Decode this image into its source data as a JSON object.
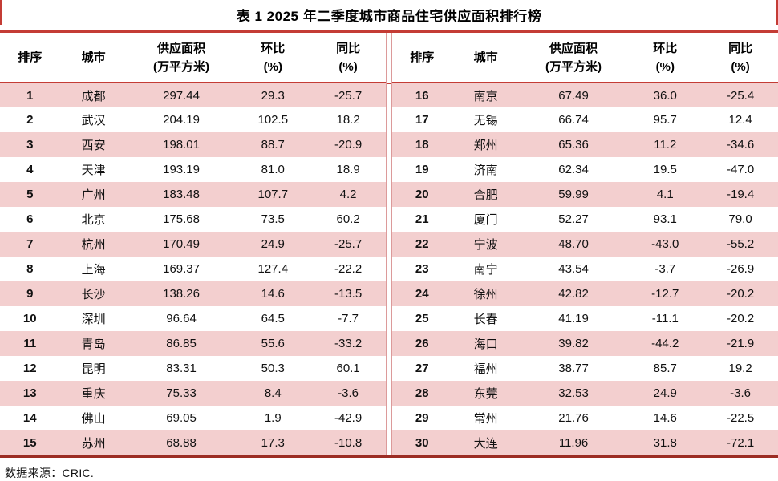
{
  "title": "表 1  2025 年二季度城市商品住宅供应面积排行榜",
  "footer": "数据来源：CRIC.",
  "columns": [
    {
      "line1": "排序",
      "line2": ""
    },
    {
      "line1": "城市",
      "line2": ""
    },
    {
      "line1": "供应面积",
      "line2": "(万平方米)"
    },
    {
      "line1": "环比",
      "line2": "(%)"
    },
    {
      "line1": "同比",
      "line2": "(%)"
    }
  ],
  "rows_left": [
    [
      "1",
      "成都",
      "297.44",
      "29.3",
      "-25.7"
    ],
    [
      "2",
      "武汉",
      "204.19",
      "102.5",
      "18.2"
    ],
    [
      "3",
      "西安",
      "198.01",
      "88.7",
      "-20.9"
    ],
    [
      "4",
      "天津",
      "193.19",
      "81.0",
      "18.9"
    ],
    [
      "5",
      "广州",
      "183.48",
      "107.7",
      "4.2"
    ],
    [
      "6",
      "北京",
      "175.68",
      "73.5",
      "60.2"
    ],
    [
      "7",
      "杭州",
      "170.49",
      "24.9",
      "-25.7"
    ],
    [
      "8",
      "上海",
      "169.37",
      "127.4",
      "-22.2"
    ],
    [
      "9",
      "长沙",
      "138.26",
      "14.6",
      "-13.5"
    ],
    [
      "10",
      "深圳",
      "96.64",
      "64.5",
      "-7.7"
    ],
    [
      "11",
      "青岛",
      "86.85",
      "55.6",
      "-33.2"
    ],
    [
      "12",
      "昆明",
      "83.31",
      "50.3",
      "60.1"
    ],
    [
      "13",
      "重庆",
      "75.33",
      "8.4",
      "-3.6"
    ],
    [
      "14",
      "佛山",
      "69.05",
      "1.9",
      "-42.9"
    ],
    [
      "15",
      "苏州",
      "68.88",
      "17.3",
      "-10.8"
    ]
  ],
  "rows_right": [
    [
      "16",
      "南京",
      "67.49",
      "36.0",
      "-25.4"
    ],
    [
      "17",
      "无锡",
      "66.74",
      "95.7",
      "12.4"
    ],
    [
      "18",
      "郑州",
      "65.36",
      "11.2",
      "-34.6"
    ],
    [
      "19",
      "济南",
      "62.34",
      "19.5",
      "-47.0"
    ],
    [
      "20",
      "合肥",
      "59.99",
      "4.1",
      "-19.4"
    ],
    [
      "21",
      "厦门",
      "52.27",
      "93.1",
      "79.0"
    ],
    [
      "22",
      "宁波",
      "48.70",
      "-43.0",
      "-55.2"
    ],
    [
      "23",
      "南宁",
      "43.54",
      "-3.7",
      "-26.9"
    ],
    [
      "24",
      "徐州",
      "42.82",
      "-12.7",
      "-20.2"
    ],
    [
      "25",
      "长春",
      "41.19",
      "-11.1",
      "-20.2"
    ],
    [
      "26",
      "海口",
      "39.82",
      "-44.2",
      "-21.9"
    ],
    [
      "27",
      "福州",
      "38.77",
      "85.7",
      "19.2"
    ],
    [
      "28",
      "东莞",
      "32.53",
      "24.9",
      "-3.6"
    ],
    [
      "29",
      "常州",
      "21.76",
      "14.6",
      "-22.5"
    ],
    [
      "30",
      "大连",
      "11.96",
      "31.8",
      "-72.1"
    ]
  ],
  "colors": {
    "accent_red": "#c43c35",
    "dark_red": "#9c2d24",
    "stripe_pink": "#f3cfcf",
    "divider_pink": "#dc9a9a"
  }
}
